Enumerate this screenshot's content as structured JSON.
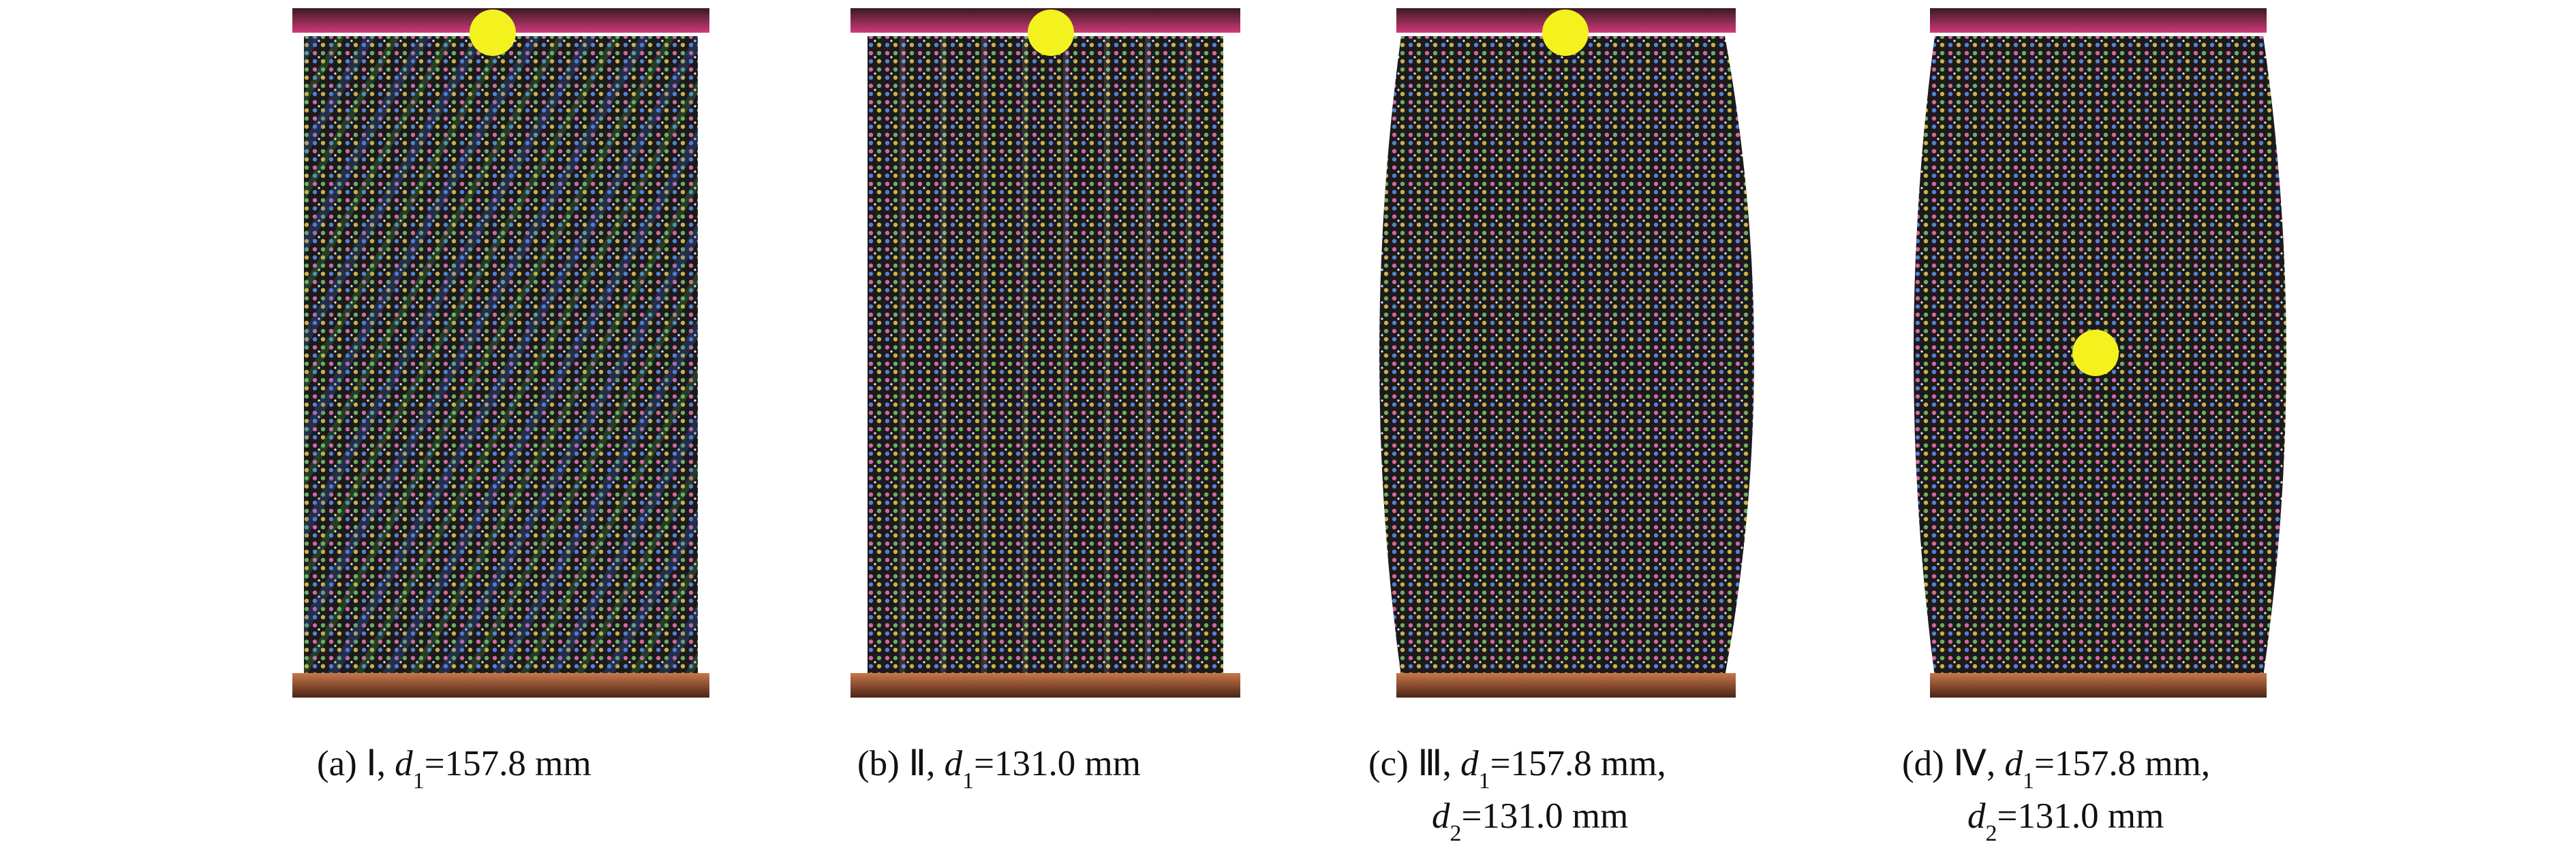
{
  "panels": [
    {
      "label": "(a)",
      "case": "Ⅰ,",
      "captions": [
        {
          "symbol": "d",
          "subscript": "1",
          "value": "=157.8 mm"
        }
      ]
    },
    {
      "label": "(b)",
      "case": "Ⅱ,",
      "captions": [
        {
          "symbol": "d",
          "subscript": "1",
          "value": "=131.0 mm"
        }
      ]
    },
    {
      "label": "(c)",
      "case": "Ⅲ,",
      "captions": [
        {
          "symbol": "d",
          "subscript": "1",
          "value": "=157.8 mm,"
        },
        {
          "symbol": "d",
          "subscript": "2",
          "value": "=131.0 mm"
        }
      ]
    },
    {
      "label": "(d)",
      "case": "Ⅳ,",
      "captions": [
        {
          "symbol": "d",
          "subscript": "1",
          "value": "=157.8 mm,"
        },
        {
          "symbol": "d",
          "subscript": "2",
          "value": "=131.0 mm"
        }
      ]
    }
  ]
}
